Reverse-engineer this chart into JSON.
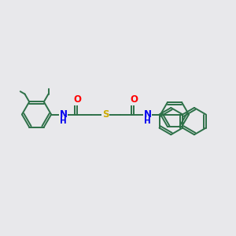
{
  "bg_color": "#e8e8eb",
  "bond_color": "#2d7048",
  "bond_width": 1.4,
  "atom_colors": {
    "O": "#ff0000",
    "N": "#0000ee",
    "S": "#ccaa00",
    "C": "#2d7048"
  },
  "font_size": 8.5,
  "ring_r": 0.6,
  "scale": 1.0
}
